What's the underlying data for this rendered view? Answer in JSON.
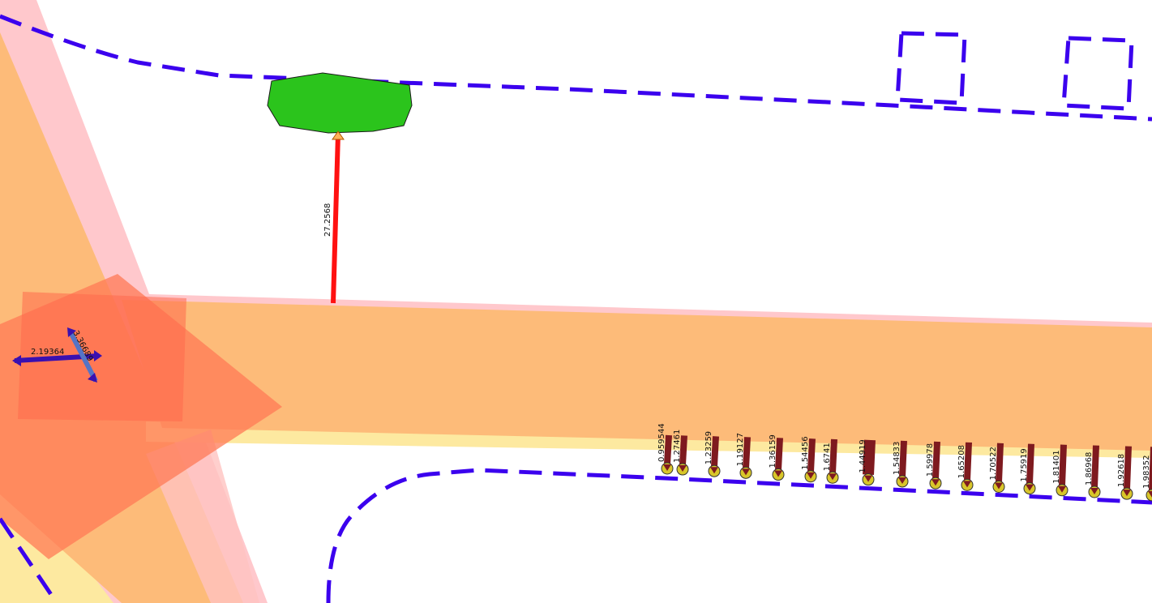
{
  "map": {
    "colors": {
      "boundary_dashed": "#3b00ee",
      "road_orange": "#fdbb79",
      "road_pink": "#ffc8cc",
      "road_yellow_edge": "#fde9a0",
      "tree_green": "#2bc41c",
      "measure_red": "#ff1111",
      "arrow_dark_red": "#7e1a1f",
      "point_yellow": "#d8c62a",
      "highlight_red": "#ff6a4d",
      "measure_blue": "#5574c6",
      "measure_purple": "#3a10b0"
    },
    "measurements": {
      "vertical_red": "27.2568",
      "horizontal_purple": "2.19364",
      "diagonal_blue": "3.36689"
    },
    "arrow_labels": [
      "0.959544",
      "1.27461",
      "1.23259",
      "1.19127",
      "1.36159",
      "1.54456",
      "1.6741",
      "1.44919",
      "1.54833",
      "1.59978",
      "1.65208",
      "1.70522",
      "1.75919",
      "1.81401",
      "1.86968",
      "1.92618",
      "1.98352"
    ]
  }
}
